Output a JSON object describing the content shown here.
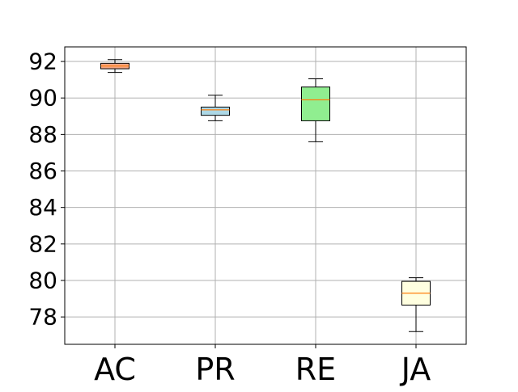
{
  "chart_data": {
    "type": "box",
    "categories": [
      "AC",
      "PR",
      "RE",
      "JA"
    ],
    "ylim": [
      76.5,
      92.8
    ],
    "yticks": [
      78,
      80,
      82,
      84,
      86,
      88,
      90,
      92
    ],
    "grid": true,
    "boxes": [
      {
        "label": "AC",
        "whisker_low": 91.4,
        "q1": 91.6,
        "median": 91.75,
        "q3": 91.9,
        "whisker_high": 92.1,
        "color": "#f4a582"
      },
      {
        "label": "PR",
        "whisker_low": 88.75,
        "q1": 89.05,
        "median": 89.35,
        "q3": 89.5,
        "whisker_high": 90.15,
        "color": "#add8e6"
      },
      {
        "label": "RE",
        "whisker_low": 87.6,
        "q1": 88.75,
        "median": 89.9,
        "q3": 90.6,
        "whisker_high": 91.05,
        "color": "#90ee90"
      },
      {
        "label": "JA",
        "whisker_low": 77.2,
        "q1": 78.65,
        "median": 79.3,
        "q3": 79.95,
        "whisker_high": 80.15,
        "color": "#ffffe0"
      }
    ],
    "median_color": "#ff7f0e"
  }
}
